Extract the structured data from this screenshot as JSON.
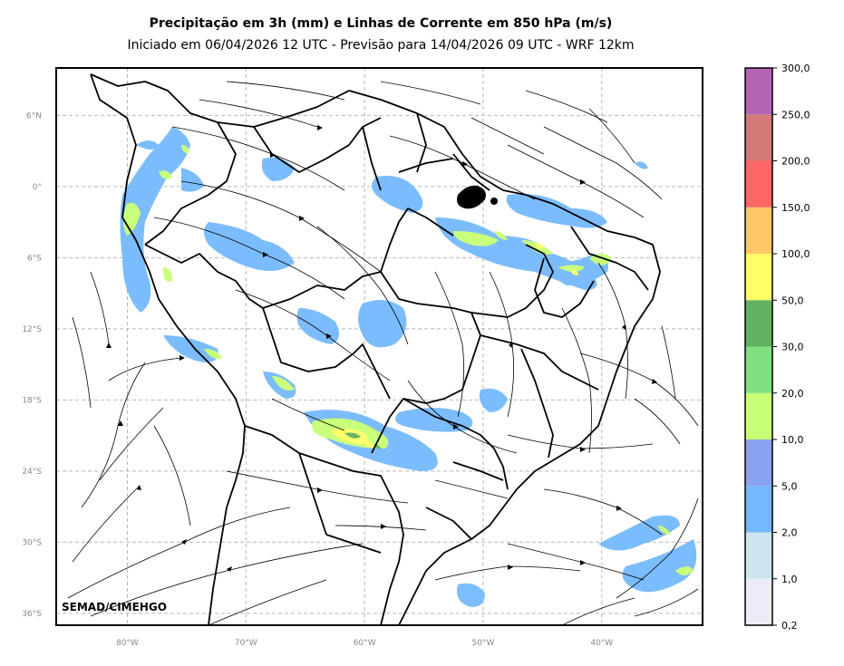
{
  "title": "Precipitação em 3h (mm) e Linhas de Corrente em 850 hPa (m/s)",
  "subtitle": "Iniciado em 06/04/2026 12 UTC - Previsão para 14/04/2026 09 UTC - WRF 12km",
  "credit": "SEMAD/CIMEHGO",
  "map": {
    "lon_range": [
      -86,
      -31.5
    ],
    "lat_range": [
      -37,
      10
    ],
    "lat_ticks": [
      {
        "value": 6,
        "label": "6°N"
      },
      {
        "value": 0,
        "label": "0°"
      },
      {
        "value": -6,
        "label": "6°S"
      },
      {
        "value": -12,
        "label": "12°S"
      },
      {
        "value": -18,
        "label": "18°S"
      },
      {
        "value": -24,
        "label": "24°S"
      },
      {
        "value": -30,
        "label": "30°S"
      },
      {
        "value": -36,
        "label": "36°S"
      }
    ],
    "lon_ticks": [
      {
        "value": -80,
        "label": "80°W"
      },
      {
        "value": -70,
        "label": "70°W"
      },
      {
        "value": -60,
        "label": "60°W"
      },
      {
        "value": -50,
        "label": "50°W"
      },
      {
        "value": -40,
        "label": "40°W"
      }
    ],
    "grid": true
  },
  "colorbar": {
    "levels": [
      "0,2",
      "1,0",
      "2,0",
      "5,0",
      "10,0",
      "20,0",
      "30,0",
      "50,0",
      "100,0",
      "150,0",
      "200,0",
      "250,0",
      "300,0"
    ],
    "colors": [
      "#ececf8",
      "#cde5ef",
      "#74b9ff",
      "#8aa2f0",
      "#c8ff74",
      "#80e080",
      "#62b062",
      "#ffff66",
      "#ffc766",
      "#ff6666",
      "#d47878",
      "#b464b4"
    ]
  }
}
